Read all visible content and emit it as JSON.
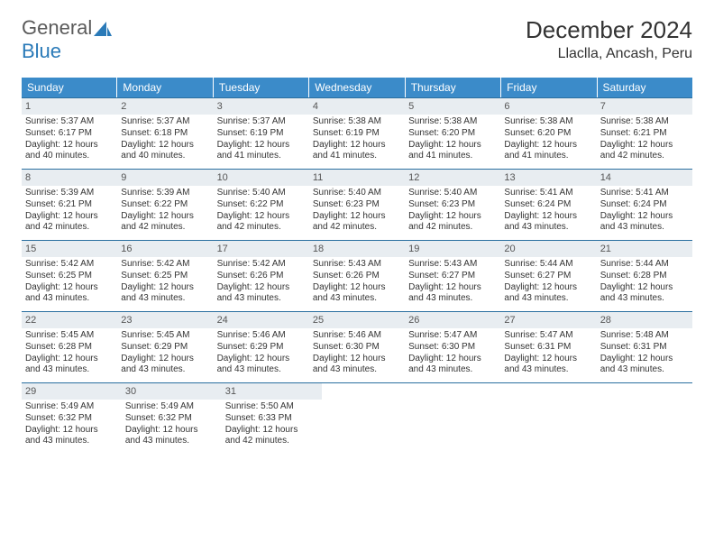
{
  "logo": {
    "text1": "General",
    "text2": "Blue"
  },
  "title": "December 2024",
  "location": "Llaclla, Ancash, Peru",
  "colors": {
    "header_bg": "#3b8bc9",
    "header_text": "#ffffff",
    "daynum_bg": "#e8edf1",
    "border": "#2a6fa0",
    "logo_gray": "#5a5a5a",
    "logo_blue": "#2a7ab8"
  },
  "weekdays": [
    "Sunday",
    "Monday",
    "Tuesday",
    "Wednesday",
    "Thursday",
    "Friday",
    "Saturday"
  ],
  "weeks": [
    [
      {
        "n": "1",
        "sr": "Sunrise: 5:37 AM",
        "ss": "Sunset: 6:17 PM",
        "d1": "Daylight: 12 hours",
        "d2": "and 40 minutes."
      },
      {
        "n": "2",
        "sr": "Sunrise: 5:37 AM",
        "ss": "Sunset: 6:18 PM",
        "d1": "Daylight: 12 hours",
        "d2": "and 40 minutes."
      },
      {
        "n": "3",
        "sr": "Sunrise: 5:37 AM",
        "ss": "Sunset: 6:19 PM",
        "d1": "Daylight: 12 hours",
        "d2": "and 41 minutes."
      },
      {
        "n": "4",
        "sr": "Sunrise: 5:38 AM",
        "ss": "Sunset: 6:19 PM",
        "d1": "Daylight: 12 hours",
        "d2": "and 41 minutes."
      },
      {
        "n": "5",
        "sr": "Sunrise: 5:38 AM",
        "ss": "Sunset: 6:20 PM",
        "d1": "Daylight: 12 hours",
        "d2": "and 41 minutes."
      },
      {
        "n": "6",
        "sr": "Sunrise: 5:38 AM",
        "ss": "Sunset: 6:20 PM",
        "d1": "Daylight: 12 hours",
        "d2": "and 41 minutes."
      },
      {
        "n": "7",
        "sr": "Sunrise: 5:38 AM",
        "ss": "Sunset: 6:21 PM",
        "d1": "Daylight: 12 hours",
        "d2": "and 42 minutes."
      }
    ],
    [
      {
        "n": "8",
        "sr": "Sunrise: 5:39 AM",
        "ss": "Sunset: 6:21 PM",
        "d1": "Daylight: 12 hours",
        "d2": "and 42 minutes."
      },
      {
        "n": "9",
        "sr": "Sunrise: 5:39 AM",
        "ss": "Sunset: 6:22 PM",
        "d1": "Daylight: 12 hours",
        "d2": "and 42 minutes."
      },
      {
        "n": "10",
        "sr": "Sunrise: 5:40 AM",
        "ss": "Sunset: 6:22 PM",
        "d1": "Daylight: 12 hours",
        "d2": "and 42 minutes."
      },
      {
        "n": "11",
        "sr": "Sunrise: 5:40 AM",
        "ss": "Sunset: 6:23 PM",
        "d1": "Daylight: 12 hours",
        "d2": "and 42 minutes."
      },
      {
        "n": "12",
        "sr": "Sunrise: 5:40 AM",
        "ss": "Sunset: 6:23 PM",
        "d1": "Daylight: 12 hours",
        "d2": "and 42 minutes."
      },
      {
        "n": "13",
        "sr": "Sunrise: 5:41 AM",
        "ss": "Sunset: 6:24 PM",
        "d1": "Daylight: 12 hours",
        "d2": "and 43 minutes."
      },
      {
        "n": "14",
        "sr": "Sunrise: 5:41 AM",
        "ss": "Sunset: 6:24 PM",
        "d1": "Daylight: 12 hours",
        "d2": "and 43 minutes."
      }
    ],
    [
      {
        "n": "15",
        "sr": "Sunrise: 5:42 AM",
        "ss": "Sunset: 6:25 PM",
        "d1": "Daylight: 12 hours",
        "d2": "and 43 minutes."
      },
      {
        "n": "16",
        "sr": "Sunrise: 5:42 AM",
        "ss": "Sunset: 6:25 PM",
        "d1": "Daylight: 12 hours",
        "d2": "and 43 minutes."
      },
      {
        "n": "17",
        "sr": "Sunrise: 5:42 AM",
        "ss": "Sunset: 6:26 PM",
        "d1": "Daylight: 12 hours",
        "d2": "and 43 minutes."
      },
      {
        "n": "18",
        "sr": "Sunrise: 5:43 AM",
        "ss": "Sunset: 6:26 PM",
        "d1": "Daylight: 12 hours",
        "d2": "and 43 minutes."
      },
      {
        "n": "19",
        "sr": "Sunrise: 5:43 AM",
        "ss": "Sunset: 6:27 PM",
        "d1": "Daylight: 12 hours",
        "d2": "and 43 minutes."
      },
      {
        "n": "20",
        "sr": "Sunrise: 5:44 AM",
        "ss": "Sunset: 6:27 PM",
        "d1": "Daylight: 12 hours",
        "d2": "and 43 minutes."
      },
      {
        "n": "21",
        "sr": "Sunrise: 5:44 AM",
        "ss": "Sunset: 6:28 PM",
        "d1": "Daylight: 12 hours",
        "d2": "and 43 minutes."
      }
    ],
    [
      {
        "n": "22",
        "sr": "Sunrise: 5:45 AM",
        "ss": "Sunset: 6:28 PM",
        "d1": "Daylight: 12 hours",
        "d2": "and 43 minutes."
      },
      {
        "n": "23",
        "sr": "Sunrise: 5:45 AM",
        "ss": "Sunset: 6:29 PM",
        "d1": "Daylight: 12 hours",
        "d2": "and 43 minutes."
      },
      {
        "n": "24",
        "sr": "Sunrise: 5:46 AM",
        "ss": "Sunset: 6:29 PM",
        "d1": "Daylight: 12 hours",
        "d2": "and 43 minutes."
      },
      {
        "n": "25",
        "sr": "Sunrise: 5:46 AM",
        "ss": "Sunset: 6:30 PM",
        "d1": "Daylight: 12 hours",
        "d2": "and 43 minutes."
      },
      {
        "n": "26",
        "sr": "Sunrise: 5:47 AM",
        "ss": "Sunset: 6:30 PM",
        "d1": "Daylight: 12 hours",
        "d2": "and 43 minutes."
      },
      {
        "n": "27",
        "sr": "Sunrise: 5:47 AM",
        "ss": "Sunset: 6:31 PM",
        "d1": "Daylight: 12 hours",
        "d2": "and 43 minutes."
      },
      {
        "n": "28",
        "sr": "Sunrise: 5:48 AM",
        "ss": "Sunset: 6:31 PM",
        "d1": "Daylight: 12 hours",
        "d2": "and 43 minutes."
      }
    ],
    [
      {
        "n": "29",
        "sr": "Sunrise: 5:49 AM",
        "ss": "Sunset: 6:32 PM",
        "d1": "Daylight: 12 hours",
        "d2": "and 43 minutes."
      },
      {
        "n": "30",
        "sr": "Sunrise: 5:49 AM",
        "ss": "Sunset: 6:32 PM",
        "d1": "Daylight: 12 hours",
        "d2": "and 43 minutes."
      },
      {
        "n": "31",
        "sr": "Sunrise: 5:50 AM",
        "ss": "Sunset: 6:33 PM",
        "d1": "Daylight: 12 hours",
        "d2": "and 42 minutes."
      },
      null,
      null,
      null,
      null
    ]
  ]
}
